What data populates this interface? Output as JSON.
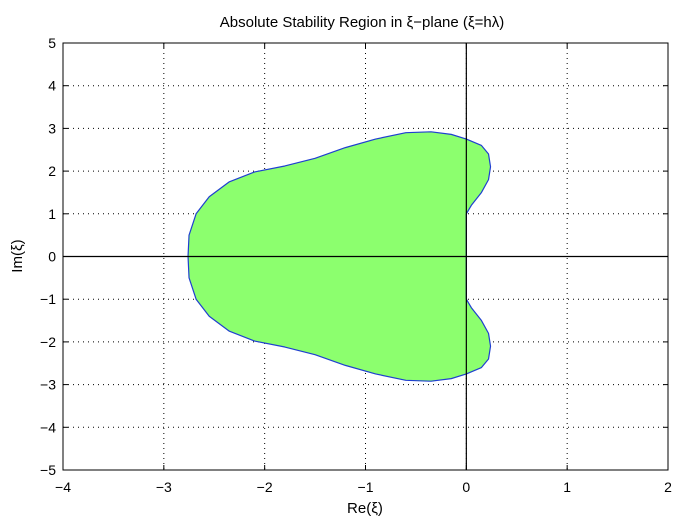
{
  "chart_data": {
    "type": "area",
    "title": "Absolute Stability Region in ξ−plane (ξ=hλ)",
    "xlabel": "Re(ξ)",
    "ylabel": "Im(ξ)",
    "xlim": [
      -4,
      2
    ],
    "ylim": [
      -5,
      5
    ],
    "xticks": [
      -4,
      -3,
      -2,
      -1,
      0,
      1,
      2
    ],
    "yticks": [
      -5,
      -4,
      -3,
      -2,
      -1,
      0,
      1,
      2,
      3,
      4,
      5
    ],
    "xtick_labels": [
      "−4",
      "−3",
      "−2",
      "−1",
      "0",
      "1",
      "2"
    ],
    "ytick_labels": [
      "−5",
      "−4",
      "−3",
      "−2",
      "−1",
      "0",
      "1",
      "2",
      "3",
      "4",
      "5"
    ],
    "grid": true,
    "grid_style": "dotted",
    "fill_color": "#8cff6e",
    "edge_color": "#1f3fd0",
    "reference_lines": [
      "x=0",
      "y=0"
    ],
    "series": [
      {
        "boundary": [
          [
            0.0,
            0.0
          ],
          [
            0.0,
            0.2
          ],
          [
            0.0,
            0.4
          ],
          [
            0.0,
            0.6
          ],
          [
            0.0,
            0.8
          ],
          [
            0.0,
            1.0
          ],
          [
            0.05,
            1.2
          ],
          [
            0.15,
            1.5
          ],
          [
            0.22,
            1.8
          ],
          [
            0.24,
            2.1
          ],
          [
            0.22,
            2.4
          ],
          [
            0.15,
            2.6
          ],
          [
            0.0,
            2.75
          ],
          [
            -0.15,
            2.86
          ],
          [
            -0.35,
            2.92
          ],
          [
            -0.6,
            2.9
          ],
          [
            -0.9,
            2.75
          ],
          [
            -1.2,
            2.55
          ],
          [
            -1.5,
            2.3
          ],
          [
            -1.8,
            2.12
          ],
          [
            -2.1,
            1.98
          ],
          [
            -2.35,
            1.75
          ],
          [
            -2.55,
            1.4
          ],
          [
            -2.68,
            1.0
          ],
          [
            -2.75,
            0.5
          ],
          [
            -2.76,
            0.0
          ],
          [
            -2.75,
            -0.5
          ],
          [
            -2.68,
            -1.0
          ],
          [
            -2.55,
            -1.4
          ],
          [
            -2.35,
            -1.75
          ],
          [
            -2.1,
            -1.98
          ],
          [
            -1.8,
            -2.12
          ],
          [
            -1.5,
            -2.3
          ],
          [
            -1.2,
            -2.55
          ],
          [
            -0.9,
            -2.75
          ],
          [
            -0.6,
            -2.9
          ],
          [
            -0.35,
            -2.92
          ],
          [
            -0.15,
            -2.86
          ],
          [
            0.0,
            -2.75
          ],
          [
            0.15,
            -2.6
          ],
          [
            0.22,
            -2.4
          ],
          [
            0.24,
            -2.1
          ],
          [
            0.22,
            -1.8
          ],
          [
            0.15,
            -1.5
          ],
          [
            0.05,
            -1.2
          ],
          [
            0.0,
            -1.0
          ],
          [
            0.0,
            -0.8
          ],
          [
            0.0,
            -0.6
          ],
          [
            0.0,
            -0.4
          ],
          [
            0.0,
            -0.2
          ],
          [
            0.0,
            0.0
          ]
        ]
      }
    ]
  }
}
